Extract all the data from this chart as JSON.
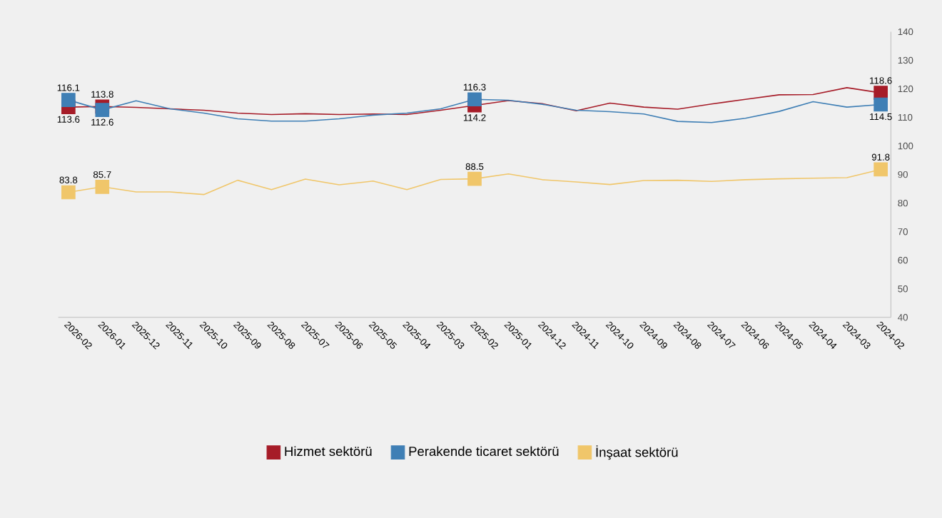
{
  "chart_data": {
    "type": "line",
    "categories": [
      "2026-02",
      "2026-01",
      "2025-12",
      "2025-11",
      "2025-10",
      "2025-09",
      "2025-08",
      "2025-07",
      "2025-06",
      "2025-05",
      "2025-04",
      "2025-03",
      "2025-02",
      "2025-01",
      "2024-12",
      "2024-11",
      "2024-10",
      "2024-09",
      "2024-08",
      "2024-07",
      "2024-06",
      "2024-05",
      "2024-04",
      "2024-03",
      "2024-02"
    ],
    "series": [
      {
        "name": "Hizmet sektörü",
        "color": "#a61c28",
        "values": [
          113.6,
          113.8,
          113.5,
          113.0,
          112.5,
          111.5,
          111.0,
          111.3,
          111.0,
          111.2,
          111.0,
          112.5,
          114.2,
          115.9,
          114.8,
          112.3,
          115.0,
          113.6,
          112.9,
          114.7,
          116.3,
          117.9,
          118.0,
          120.4,
          118.6
        ],
        "value_labels": [
          "113.6",
          "113.8",
          null,
          null,
          null,
          null,
          null,
          null,
          null,
          null,
          null,
          null,
          "114.2",
          null,
          null,
          null,
          null,
          null,
          null,
          null,
          null,
          null,
          null,
          null,
          "118.6"
        ]
      },
      {
        "name": "Perakende ticaret sektörü",
        "color": "#3f7fb5",
        "values": [
          116.1,
          112.6,
          115.8,
          113.0,
          111.5,
          109.5,
          108.7,
          108.7,
          109.5,
          110.8,
          111.5,
          113.0,
          116.3,
          116.0,
          114.6,
          112.5,
          112.0,
          111.2,
          108.6,
          108.2,
          109.7,
          112.1,
          115.5,
          113.6,
          114.5
        ],
        "value_labels": [
          "116.1",
          "112.6",
          null,
          null,
          null,
          null,
          null,
          null,
          null,
          null,
          null,
          null,
          "116.3",
          null,
          null,
          null,
          null,
          null,
          null,
          null,
          null,
          null,
          null,
          null,
          "114.5"
        ]
      },
      {
        "name": "İnşaat sektörü",
        "color": "#f0c66a",
        "values": [
          83.8,
          85.7,
          83.9,
          83.9,
          83.0,
          88.0,
          84.7,
          88.4,
          86.4,
          87.7,
          84.7,
          88.3,
          88.5,
          90.2,
          88.2,
          87.4,
          86.5,
          87.9,
          88.0,
          87.6,
          88.2,
          88.5,
          88.7,
          88.9,
          91.8
        ],
        "value_labels": [
          "83.8",
          "85.7",
          null,
          null,
          null,
          null,
          null,
          null,
          null,
          null,
          null,
          null,
          "88.5",
          null,
          null,
          null,
          null,
          null,
          null,
          null,
          null,
          null,
          null,
          null,
          "91.8"
        ]
      }
    ],
    "ylim": [
      40,
      140
    ],
    "yticks": [
      40,
      50,
      60,
      70,
      80,
      90,
      100,
      110,
      120,
      130,
      140
    ],
    "legend": "bottom",
    "grid": false
  }
}
